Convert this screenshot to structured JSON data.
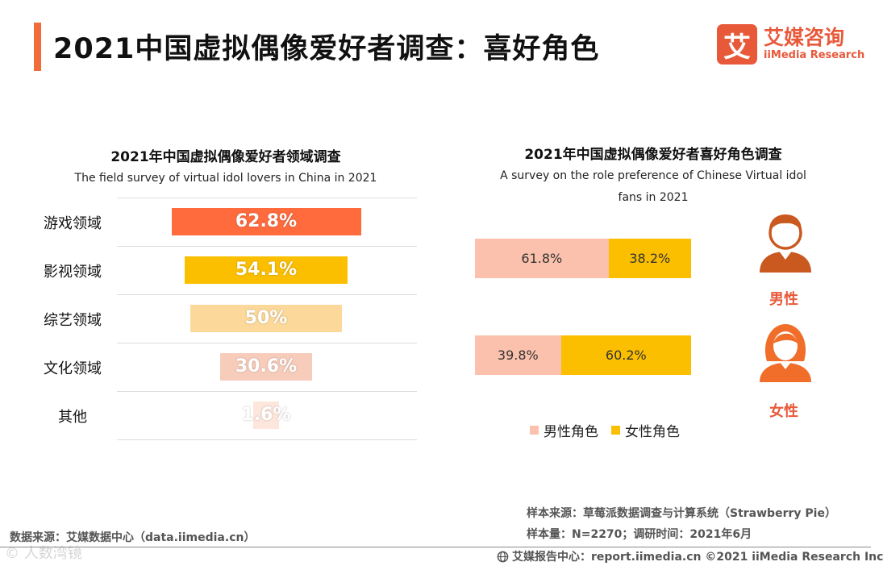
{
  "header": {
    "title": "2021中国虚拟偶像爱好者调查：喜好角色"
  },
  "logo": {
    "mark": "艾",
    "name_cn": "艾媒咨询",
    "name_en": "iiMedia Research"
  },
  "chart_data": [
    {
      "type": "bar",
      "orientation": "horizontal",
      "title": "2021年中国虚拟偶像爱好者领域调查",
      "subtitle": "The field survey of virtual idol lovers in China in 2021",
      "categories": [
        "游戏领域",
        "影视领域",
        "综艺领域",
        "文化领域",
        "其他"
      ],
      "values": [
        62.8,
        54.1,
        50,
        30.6,
        1.6
      ],
      "value_labels": [
        "62.8%",
        "54.1%",
        "50%",
        "30.6%",
        "1.6%"
      ],
      "colors": [
        "#ff6b3d",
        "#fbbf00",
        "#fcd99a",
        "#f8ccba",
        "#fde6dc"
      ],
      "value_unit": "%",
      "xlim": [
        0,
        62.8
      ]
    },
    {
      "type": "bar",
      "orientation": "horizontal",
      "stacked": true,
      "title": "2021年中国虚拟偶像爱好者喜好角色调查",
      "subtitle": "A survey on the role preference of Chinese Virtual idol fans in 2021",
      "categories": [
        "男性",
        "女性"
      ],
      "series": [
        {
          "name": "男性角色",
          "values": [
            61.8,
            39.8
          ],
          "labels": [
            "61.8%",
            "39.8%"
          ],
          "color": "#fbc1ad"
        },
        {
          "name": "女性角色",
          "values": [
            38.2,
            60.2
          ],
          "labels": [
            "38.2%",
            "60.2%"
          ],
          "color": "#fbbf00"
        }
      ],
      "legend_position": "bottom",
      "xlim": [
        0,
        100
      ]
    }
  ],
  "icons": {
    "male": "male-person-icon",
    "female": "female-person-icon",
    "footer": "globe-icon"
  },
  "sources": {
    "left": "数据来源：艾媒数据中心（data.iimedia.cn）",
    "sample_source": "样本来源：草莓派数据调查与计算系统（Strawberry Pie）",
    "sample_size": "样本量：N=2270；调研时间：2021年6月",
    "footer": "艾媒报告中心：report.iimedia.cn  ©2021  iiMedia Research  Inc"
  },
  "watermark": "©  人数湾镜"
}
